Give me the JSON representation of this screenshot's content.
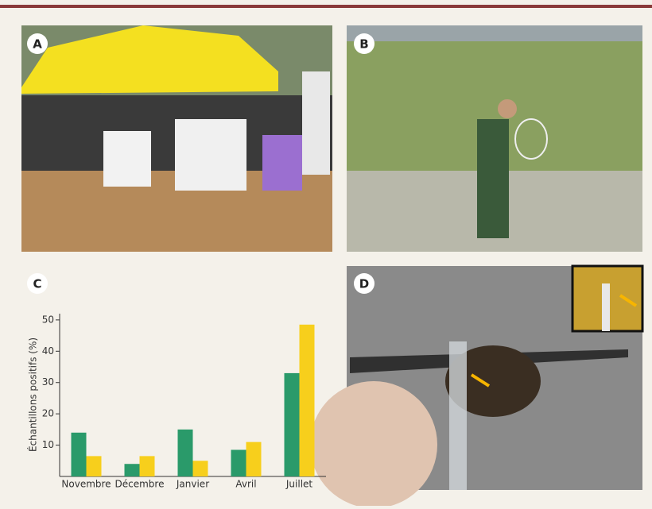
{
  "panel_labels": [
    "A",
    "B",
    "C",
    "D"
  ],
  "chart_data": {
    "type": "bar",
    "ylabel": "Échantillons positifs (%)",
    "categories": [
      "Novembre",
      "Décembre",
      "Janvier",
      "Avril",
      "Juillet"
    ],
    "series": [
      {
        "color": "#2a9a6a",
        "values": [
          14,
          4,
          15,
          8.5,
          33
        ]
      },
      {
        "color": "#f7cf1c",
        "values": [
          6.5,
          6.5,
          5,
          11,
          48.5
        ]
      }
    ],
    "ylim": [
      0,
      52
    ],
    "yticks": [
      10,
      20,
      30,
      40,
      50
    ]
  }
}
